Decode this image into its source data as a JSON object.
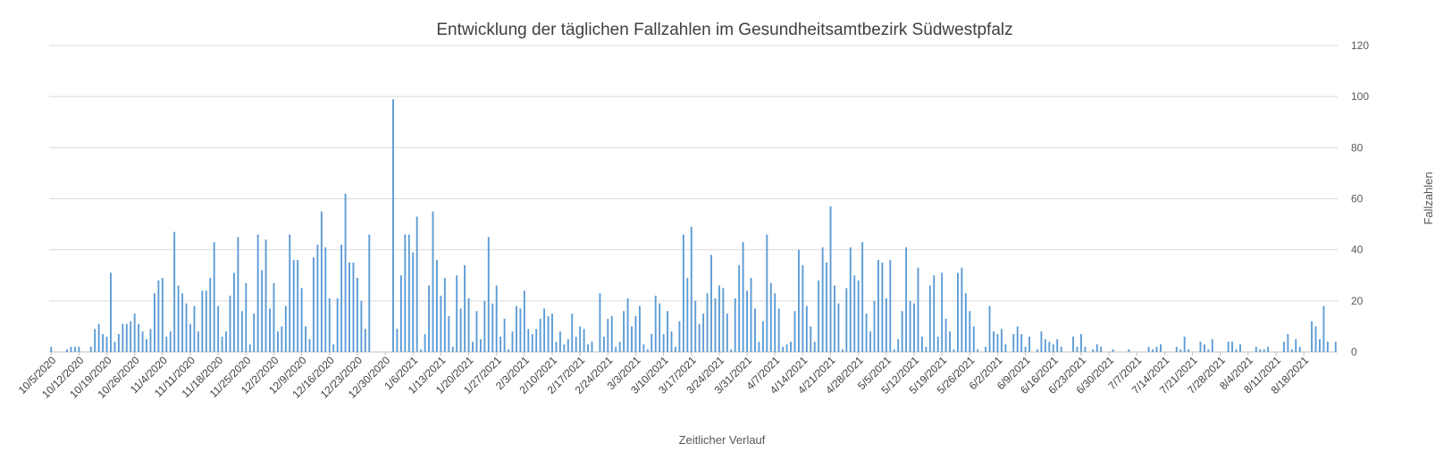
{
  "chart_data": {
    "type": "bar",
    "title": "Entwicklung der täglichen Fallzahlen im Gesundheitsamtbezirk Südwestpfalz",
    "xlabel": "Zeitlicher Verlauf",
    "ylabel": "Fallzahlen",
    "ylim": [
      0,
      120
    ],
    "yticks": [
      0,
      20,
      40,
      60,
      80,
      100,
      120
    ],
    "y_axis_position": "right",
    "grid": true,
    "legend": "none",
    "bar_color": "#5b9bd5",
    "start_date": "10/5/2020",
    "tick_labels": [
      "10/5/2020",
      "10/12/2020",
      "10/19/2020",
      "10/26/2020",
      "11/4/2020",
      "11/11/2020",
      "11/18/2020",
      "11/25/2020",
      "12/2/2020",
      "12/9/2020",
      "12/16/2020",
      "12/23/2020",
      "12/30/2020",
      "1/6/2021",
      "1/13/2021",
      "1/20/2021",
      "1/27/2021",
      "2/3/2021",
      "2/10/2021",
      "2/17/2021",
      "2/24/2021",
      "3/3/2021",
      "3/10/2021",
      "3/17/2021",
      "3/24/2021",
      "3/31/2021",
      "4/7/2021",
      "4/14/2021",
      "4/21/2021",
      "4/28/2021",
      "5/5/2021",
      "5/12/2021",
      "5/19/2021",
      "5/26/2021",
      "6/2/2021",
      "6/9/2021",
      "6/16/2021",
      "6/23/2021",
      "6/30/2021",
      "7/7/2021",
      "7/14/2021",
      "7/21/2021",
      "7/28/2021",
      "8/4/2021",
      "8/11/2021",
      "8/18/2021"
    ],
    "values": [
      2,
      0,
      0,
      0,
      1,
      2,
      2,
      2,
      0,
      0,
      2,
      9,
      11,
      7,
      6,
      31,
      4,
      7,
      11,
      11,
      12,
      15,
      11,
      8,
      5,
      9,
      23,
      28,
      29,
      6,
      8,
      47,
      26,
      23,
      19,
      11,
      18,
      8,
      24,
      24,
      29,
      43,
      18,
      6,
      8,
      22,
      31,
      45,
      16,
      27,
      3,
      15,
      46,
      32,
      44,
      17,
      27,
      8,
      10,
      18,
      46,
      36,
      36,
      25,
      10,
      5,
      37,
      42,
      55,
      41,
      21,
      3,
      21,
      42,
      62,
      35,
      35,
      29,
      20,
      9,
      46,
      0,
      0,
      0,
      0,
      0,
      99,
      9,
      30,
      46,
      46,
      39,
      53,
      1,
      7,
      26,
      55,
      36,
      22,
      29,
      14,
      2,
      30,
      17,
      34,
      21,
      4,
      16,
      5,
      20,
      45,
      19,
      26,
      6,
      13,
      1,
      8,
      18,
      17,
      24,
      9,
      7,
      9,
      13,
      17,
      14,
      15,
      4,
      8,
      3,
      5,
      15,
      6,
      10,
      9,
      3,
      4,
      0,
      23,
      6,
      13,
      14,
      2,
      4,
      16,
      21,
      10,
      14,
      18,
      3,
      1,
      7,
      22,
      19,
      7,
      16,
      8,
      2,
      12,
      46,
      29,
      49,
      20,
      11,
      15,
      23,
      38,
      21,
      26,
      25,
      15,
      1,
      21,
      34,
      43,
      24,
      29,
      17,
      4,
      12,
      46,
      27,
      23,
      17,
      2,
      3,
      4,
      16,
      40,
      34,
      18,
      10,
      4,
      28,
      41,
      35,
      57,
      26,
      19,
      1,
      25,
      41,
      30,
      28,
      43,
      15,
      8,
      20,
      36,
      35,
      21,
      36,
      1,
      5,
      16,
      41,
      20,
      19,
      33,
      6,
      2,
      26,
      30,
      6,
      31,
      13,
      8,
      1,
      31,
      33,
      23,
      16,
      10,
      1,
      0,
      2,
      18,
      8,
      7,
      9,
      3,
      0,
      7,
      10,
      7,
      2,
      6,
      0,
      1,
      8,
      5,
      4,
      3,
      5,
      2,
      0,
      0,
      6,
      2,
      7,
      2,
      0,
      1,
      3,
      2,
      0,
      0,
      1,
      0,
      0,
      0,
      1,
      0,
      0,
      0,
      0,
      2,
      1,
      2,
      3,
      0,
      0,
      0,
      2,
      1,
      6,
      1,
      0,
      0,
      4,
      3,
      1,
      5,
      0,
      0,
      0,
      4,
      4,
      1,
      3,
      0,
      0,
      0,
      2,
      1,
      1,
      2,
      0,
      0,
      0,
      4,
      7,
      1,
      5,
      2,
      0,
      0,
      12,
      10,
      5,
      18,
      4,
      0,
      4
    ]
  }
}
